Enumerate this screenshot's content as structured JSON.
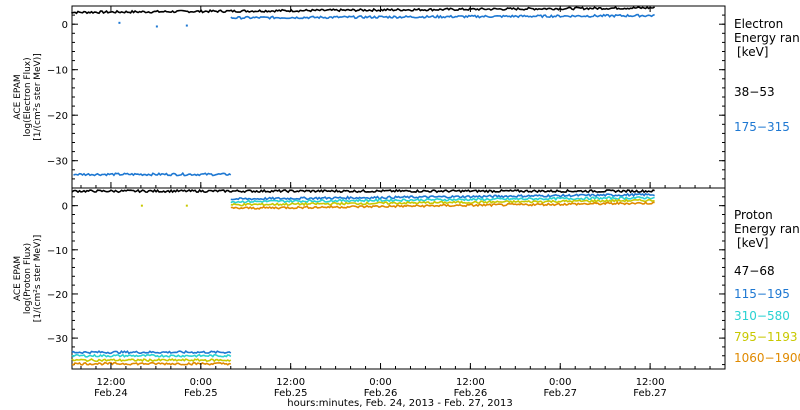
{
  "chart_data": [
    {
      "type": "scatter",
      "panel": "electron",
      "ylabel_lines": [
        "ACE EPAM",
        "log(Electron Flux)",
        "[1/(cm²s ster MeV)]"
      ],
      "yticks": [
        0,
        -10,
        -20,
        -30
      ],
      "ylim": [
        -36,
        4
      ],
      "legend_title_lines": [
        "Electron",
        "Energy ran",
        "[keV]"
      ],
      "series": [
        {
          "name": "38-53",
          "color": "#000000",
          "data_gap": [],
          "segments": [
            {
              "x": [
                6.8,
                6.8
              ],
              "y": [
                2.6,
                2.6
              ]
            },
            {
              "x": [
                6.8,
                84.6
              ],
              "y": [
                2.6,
                3.6
              ]
            }
          ]
        },
        {
          "name": "175-315",
          "color": "#1e78d2",
          "segments": [
            {
              "x": [
                7.0,
                28.0
              ],
              "y": [
                -33.0,
                -33.0
              ]
            },
            {
              "x": [
                28.0,
                84.6
              ],
              "y": [
                1.4,
                1.9
              ]
            }
          ],
          "scatter": [
            {
              "x": 13.0,
              "y": 0.3
            },
            {
              "x": 18.0,
              "y": -0.5
            },
            {
              "x": 22.0,
              "y": -0.3
            }
          ]
        }
      ]
    },
    {
      "type": "scatter",
      "panel": "proton",
      "ylabel_lines": [
        "ACE EPAM",
        "log(Proton Flux)",
        "[1/(cm²s ster MeV)]"
      ],
      "yticks": [
        0,
        -10,
        -20,
        -30
      ],
      "ylim": [
        -37,
        4
      ],
      "legend_title_lines": [
        "Proton",
        "Energy ran",
        "[keV]"
      ],
      "series": [
        {
          "name": "47-68",
          "color": "#000000",
          "segments": [
            {
              "x": [
                6.8,
                84.6
              ],
              "y": [
                3.3,
                3.3
              ]
            }
          ]
        },
        {
          "name": "115-195",
          "color": "#1e78d2",
          "segments": [
            {
              "x": [
                6.8,
                28.0
              ],
              "y": [
                -33.2,
                -33.2
              ]
            },
            {
              "x": [
                28.0,
                84.6
              ],
              "y": [
                1.5,
                2.5
              ]
            }
          ]
        },
        {
          "name": "310-580",
          "color": "#2ad2d2",
          "segments": [
            {
              "x": [
                6.8,
                28.0
              ],
              "y": [
                -34.0,
                -34.0
              ]
            },
            {
              "x": [
                28.0,
                84.6
              ],
              "y": [
                0.9,
                1.8
              ]
            }
          ]
        },
        {
          "name": "795-1193",
          "color": "#c8c800",
          "segments": [
            {
              "x": [
                6.8,
                28.0
              ],
              "y": [
                -35.0,
                -35.0
              ]
            },
            {
              "x": [
                28.0,
                84.6
              ],
              "y": [
                0.2,
                1.2
              ]
            }
          ],
          "scatter": [
            {
              "x": 16.0,
              "y": 0.0
            },
            {
              "x": 22.0,
              "y": 0.0
            }
          ]
        },
        {
          "name": "1060-1900",
          "color": "#e08a00",
          "segments": [
            {
              "x": [
                6.8,
                28.0
              ],
              "y": [
                -35.8,
                -35.8
              ]
            },
            {
              "x": [
                28.0,
                84.6
              ],
              "y": [
                -0.6,
                0.6
              ]
            }
          ]
        }
      ]
    }
  ],
  "xaxis": {
    "xlim": [
      6.8,
      94.0
    ],
    "ticks": [
      {
        "hours": 12,
        "time": "12:00",
        "date": "Feb.24"
      },
      {
        "hours": 24,
        "time": "0:00",
        "date": "Feb.25"
      },
      {
        "hours": 36,
        "time": "12:00",
        "date": "Feb.25"
      },
      {
        "hours": 48,
        "time": "0:00",
        "date": "Feb.26"
      },
      {
        "hours": 60,
        "time": "12:00",
        "date": "Feb.26"
      },
      {
        "hours": 72,
        "time": "0:00",
        "date": "Feb.27"
      },
      {
        "hours": 84,
        "time": "12:00",
        "date": "Feb.27"
      }
    ],
    "label": "hours:minutes, Feb. 24, 2013 - Feb. 27, 2013"
  }
}
